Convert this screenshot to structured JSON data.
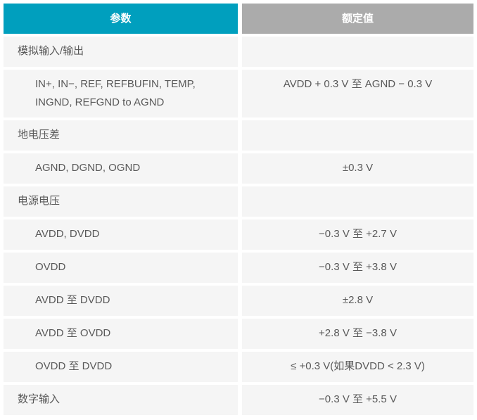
{
  "table": {
    "header": {
      "param": "参数",
      "value": "额定值"
    },
    "rows": [
      {
        "param": "模拟输入/输出",
        "value": "",
        "indent": false
      },
      {
        "param": "IN+, IN−, REF, REFBUFIN, TEMP,\nINGND, REFGND to AGND",
        "value": "AVDD + 0.3 V 至 AGND − 0.3 V",
        "indent": true
      },
      {
        "param": "地电压差",
        "value": "",
        "indent": false
      },
      {
        "param": "AGND, DGND, OGND",
        "value": "±0.3 V",
        "indent": true
      },
      {
        "param": "电源电压",
        "value": "",
        "indent": false
      },
      {
        "param": "AVDD, DVDD",
        "value": "−0.3 V 至 +2.7 V",
        "indent": true
      },
      {
        "param": "OVDD",
        "value": "−0.3 V 至 +3.8 V",
        "indent": true
      },
      {
        "param": "AVDD 至 DVDD",
        "value": "±2.8 V",
        "indent": true
      },
      {
        "param": "AVDD 至 OVDD",
        "value": "+2.8 V 至 −3.8 V",
        "indent": true
      },
      {
        "param": "OVDD 至 DVDD",
        "value": "≤ +0.3 V(如果DVDD < 2.3 V)",
        "indent": true
      },
      {
        "param": "数字输入",
        "value": "−0.3 V 至 +5.5 V",
        "indent": false
      }
    ],
    "colors": {
      "header_param_bg": "#009FBE",
      "header_value_bg": "#ABABAB",
      "row_bg": "#F5F5F5",
      "text": "#595959",
      "header_text": "#FFFFFF"
    }
  }
}
